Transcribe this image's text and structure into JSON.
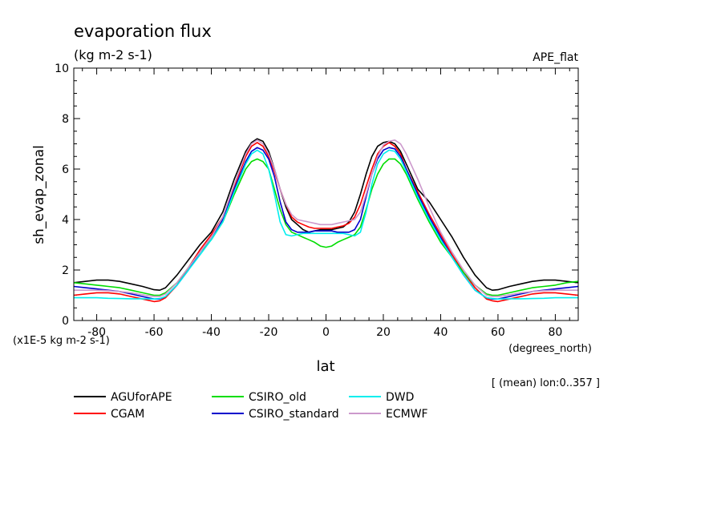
{
  "chart_data": {
    "type": "line",
    "title": "evaporation flux",
    "subtitle": "(kg m-2 s-1)",
    "dataset_label": "APE_flat",
    "xlabel": "lat",
    "xunits": "(degrees_north)",
    "ylabel": "sh_evap_zonal",
    "yscale_note": "(x1E-5 kg m-2 s-1)",
    "averaging_note": "[ (mean) lon:0..357 ]",
    "xlim": [
      -88,
      88
    ],
    "ylim": [
      0,
      10
    ],
    "xticks": [
      -80,
      -60,
      -40,
      -20,
      0,
      20,
      40,
      60,
      80
    ],
    "yticks": [
      0,
      2,
      4,
      6,
      8,
      10
    ],
    "legend_placement": "bottom",
    "x": [
      -88,
      -84,
      -80,
      -76,
      -72,
      -68,
      -64,
      -60,
      -58,
      -56,
      -52,
      -48,
      -44,
      -40,
      -36,
      -32,
      -28,
      -26,
      -24,
      -22,
      -20,
      -18,
      -16,
      -14,
      -12,
      -10,
      -8,
      -6,
      -4,
      -2,
      0,
      2,
      4,
      6,
      8,
      10,
      12,
      14,
      16,
      18,
      20,
      22,
      24,
      26,
      28,
      32,
      36,
      40,
      44,
      48,
      52,
      56,
      58,
      60,
      64,
      68,
      72,
      76,
      80,
      84,
      88
    ],
    "series": [
      {
        "name": "AGUforAPE",
        "color": "#000000",
        "values": [
          1.5,
          1.55,
          1.6,
          1.6,
          1.55,
          1.45,
          1.35,
          1.22,
          1.2,
          1.3,
          1.8,
          2.4,
          3.0,
          3.5,
          4.3,
          5.6,
          6.7,
          7.05,
          7.2,
          7.1,
          6.7,
          6.0,
          5.2,
          4.5,
          4.0,
          3.8,
          3.6,
          3.5,
          3.55,
          3.6,
          3.6,
          3.6,
          3.65,
          3.7,
          3.9,
          4.3,
          5.0,
          5.8,
          6.5,
          6.9,
          7.05,
          7.1,
          7.0,
          6.7,
          6.2,
          5.2,
          4.7,
          4.0,
          3.3,
          2.5,
          1.8,
          1.3,
          1.2,
          1.22,
          1.35,
          1.45,
          1.55,
          1.6,
          1.6,
          1.55,
          1.5
        ]
      },
      {
        "name": "CGAM",
        "color": "#ff0000",
        "values": [
          1.0,
          1.05,
          1.1,
          1.1,
          1.05,
          0.95,
          0.85,
          0.75,
          0.78,
          0.9,
          1.4,
          2.1,
          2.8,
          3.4,
          4.1,
          5.3,
          6.5,
          6.9,
          7.05,
          6.9,
          6.5,
          5.9,
          5.2,
          4.6,
          4.1,
          3.9,
          3.8,
          3.7,
          3.65,
          3.65,
          3.65,
          3.65,
          3.7,
          3.75,
          3.85,
          4.1,
          4.6,
          5.3,
          6.0,
          6.6,
          6.9,
          7.05,
          6.9,
          6.6,
          6.0,
          5.1,
          4.2,
          3.4,
          2.6,
          1.9,
          1.3,
          0.85,
          0.78,
          0.75,
          0.85,
          0.95,
          1.05,
          1.1,
          1.1,
          1.05,
          1.0
        ]
      },
      {
        "name": "CSIRO_old",
        "color": "#00dd00",
        "values": [
          1.5,
          1.45,
          1.4,
          1.35,
          1.3,
          1.2,
          1.1,
          1.0,
          1.0,
          1.1,
          1.5,
          2.1,
          2.7,
          3.2,
          3.9,
          5.0,
          6.0,
          6.3,
          6.4,
          6.3,
          6.0,
          5.2,
          4.4,
          3.8,
          3.5,
          3.4,
          3.3,
          3.2,
          3.1,
          2.95,
          2.9,
          2.95,
          3.1,
          3.2,
          3.3,
          3.4,
          3.7,
          4.4,
          5.2,
          5.8,
          6.2,
          6.4,
          6.4,
          6.2,
          5.8,
          4.8,
          3.9,
          3.1,
          2.5,
          1.9,
          1.4,
          1.05,
          1.0,
          1.0,
          1.1,
          1.2,
          1.3,
          1.35,
          1.4,
          1.5,
          1.55
        ]
      },
      {
        "name": "CSIRO_standard",
        "color": "#0000cc",
        "values": [
          1.35,
          1.3,
          1.25,
          1.2,
          1.15,
          1.05,
          0.95,
          0.85,
          0.85,
          0.95,
          1.4,
          2.0,
          2.7,
          3.3,
          4.0,
          5.2,
          6.3,
          6.7,
          6.85,
          6.75,
          6.4,
          5.7,
          4.7,
          3.9,
          3.6,
          3.5,
          3.5,
          3.5,
          3.55,
          3.55,
          3.55,
          3.55,
          3.5,
          3.5,
          3.5,
          3.6,
          4.0,
          4.9,
          5.8,
          6.4,
          6.75,
          6.85,
          6.8,
          6.5,
          6.0,
          5.0,
          4.1,
          3.3,
          2.5,
          1.8,
          1.2,
          0.9,
          0.85,
          0.85,
          0.95,
          1.05,
          1.15,
          1.2,
          1.25,
          1.3,
          1.35
        ]
      },
      {
        "name": "DWD",
        "color": "#00eeee",
        "values": [
          0.9,
          0.9,
          0.9,
          0.88,
          0.87,
          0.86,
          0.86,
          0.85,
          0.87,
          0.95,
          1.4,
          2.0,
          2.6,
          3.2,
          3.9,
          5.1,
          6.2,
          6.6,
          6.75,
          6.6,
          6.0,
          5.0,
          3.9,
          3.4,
          3.35,
          3.4,
          3.45,
          3.45,
          3.45,
          3.45,
          3.45,
          3.45,
          3.45,
          3.45,
          3.4,
          3.35,
          3.5,
          4.3,
          5.4,
          6.2,
          6.6,
          6.75,
          6.7,
          6.4,
          5.9,
          4.9,
          4.0,
          3.2,
          2.5,
          1.8,
          1.2,
          0.9,
          0.87,
          0.85,
          0.86,
          0.86,
          0.87,
          0.88,
          0.9,
          0.9,
          0.9
        ]
      },
      {
        "name": "ECMWF",
        "color": "#cc99cc",
        "values": [
          1.2,
          1.2,
          1.2,
          1.18,
          1.15,
          1.1,
          1.02,
          0.95,
          0.95,
          1.05,
          1.5,
          2.1,
          2.7,
          3.3,
          4.1,
          5.4,
          6.6,
          7.0,
          7.15,
          7.0,
          6.6,
          6.0,
          5.2,
          4.6,
          4.2,
          4.0,
          3.95,
          3.9,
          3.85,
          3.8,
          3.8,
          3.8,
          3.85,
          3.9,
          3.95,
          4.0,
          4.3,
          5.0,
          5.8,
          6.5,
          6.95,
          7.1,
          7.15,
          7.0,
          6.6,
          5.6,
          4.5,
          3.5,
          2.7,
          2.0,
          1.4,
          1.0,
          0.95,
          0.95,
          1.02,
          1.1,
          1.15,
          1.18,
          1.2,
          1.2,
          1.2
        ]
      }
    ]
  }
}
